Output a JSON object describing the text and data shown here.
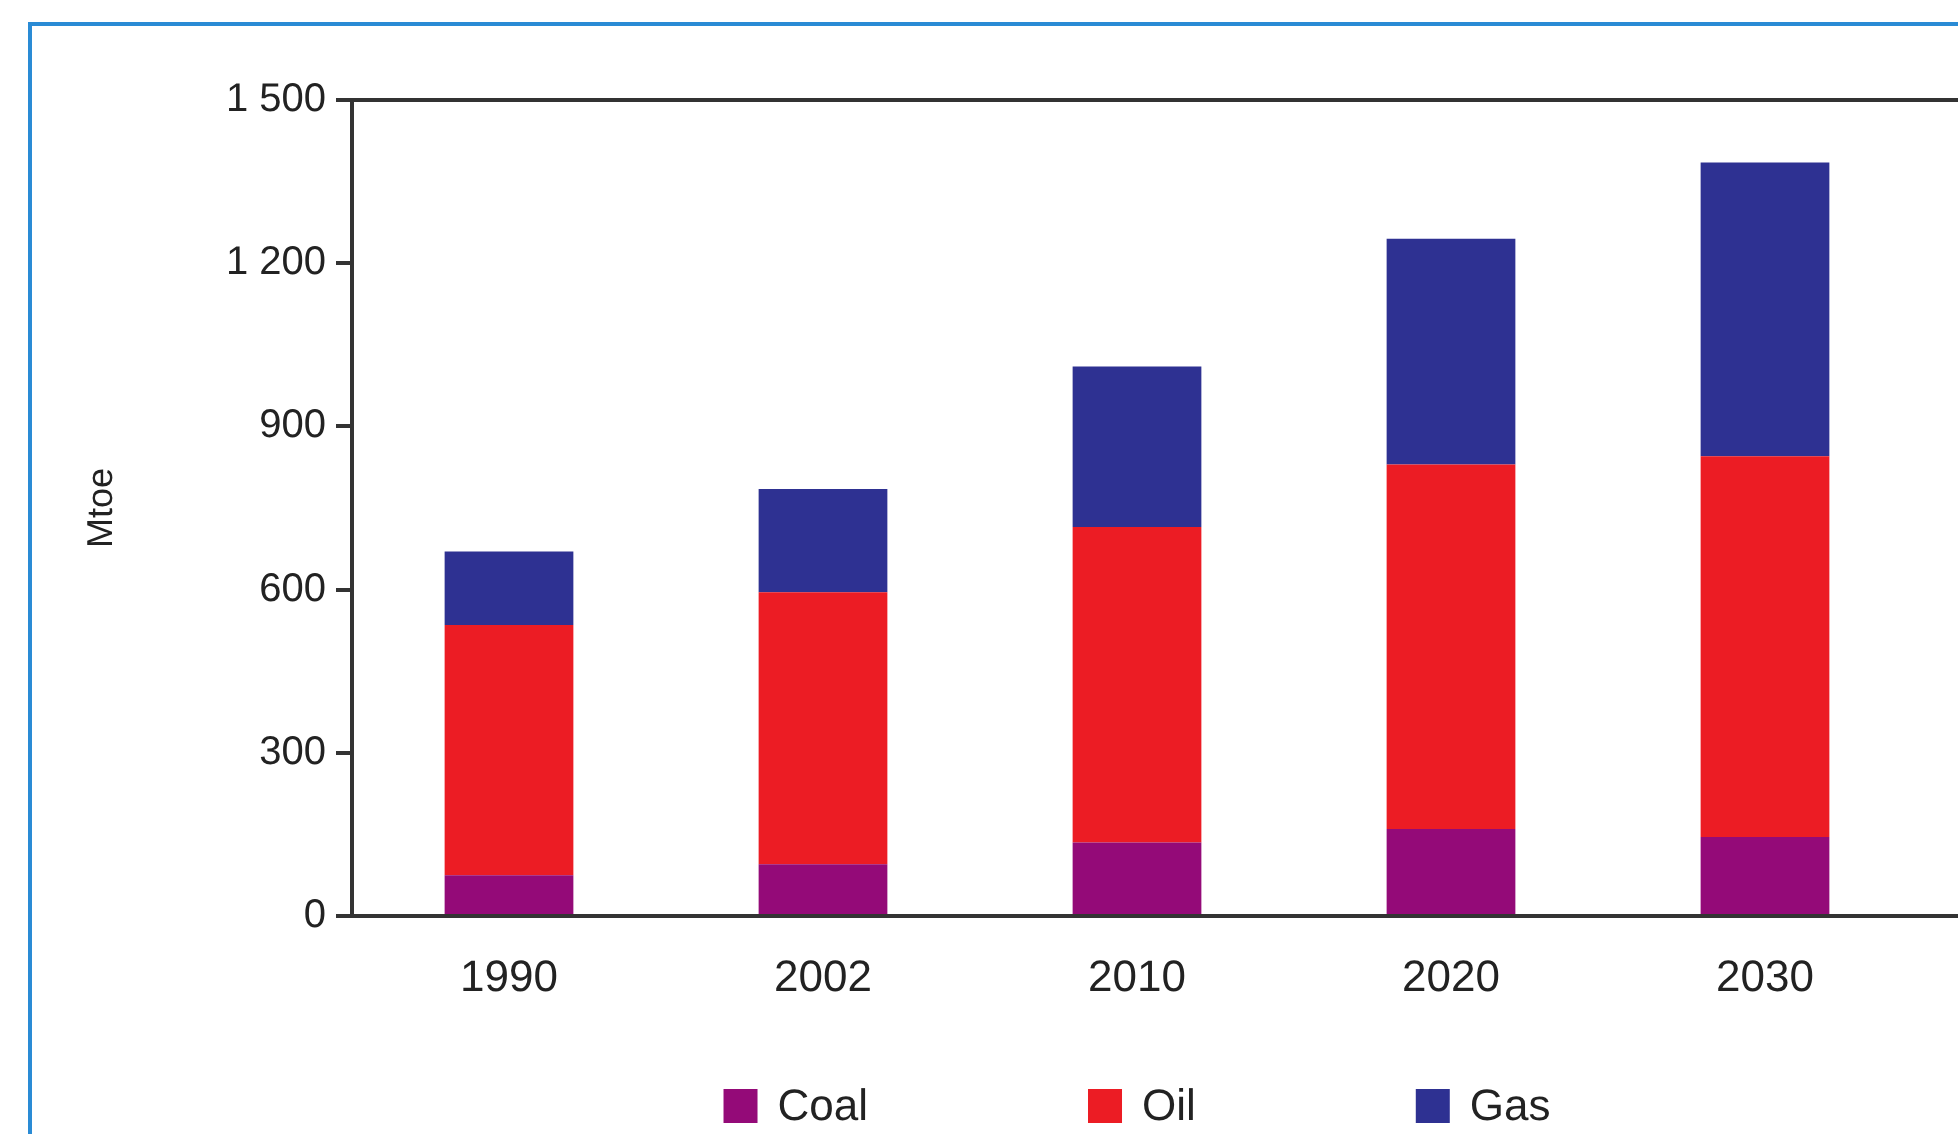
{
  "chart_data": {
    "type": "bar",
    "stacked": true,
    "ylabel": "Mtoe",
    "categories": [
      "1990",
      "2002",
      "2010",
      "2020",
      "2030"
    ],
    "series": [
      {
        "name": "Coal",
        "color": "#940a78",
        "values": [
          75,
          95,
          135,
          160,
          145
        ]
      },
      {
        "name": "Oil",
        "color": "#ec1c24",
        "values": [
          460,
          500,
          580,
          670,
          700
        ]
      },
      {
        "name": "Gas",
        "color": "#2e3192",
        "values": [
          135,
          190,
          295,
          415,
          540
        ]
      }
    ],
    "ylim": [
      0,
      1500
    ],
    "yticks": [
      0,
      300,
      600,
      900,
      {
        "value": 1200,
        "label": "1 200"
      },
      {
        "value": 1500,
        "label": "1 500"
      }
    ],
    "legend": "bottom"
  }
}
